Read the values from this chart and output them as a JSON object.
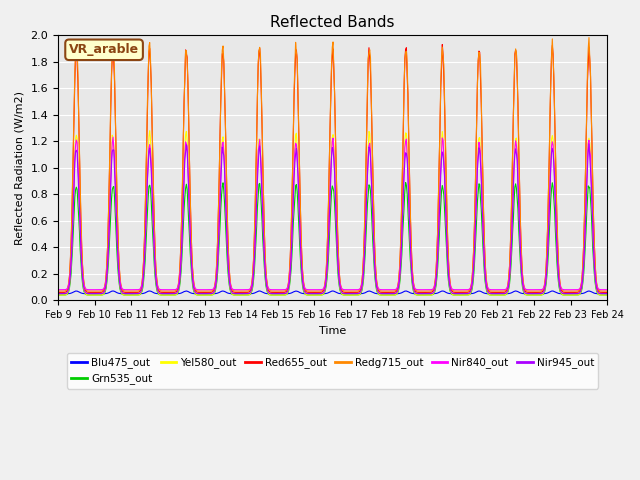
{
  "title": "Reflected Bands",
  "xlabel": "Time",
  "ylabel": "Reflected Radiation (W/m2)",
  "annotation_text": "VR_arable",
  "ylim": [
    0,
    2.0
  ],
  "series": {
    "Blu475_out": {
      "color": "#0000FF",
      "base": 0.05,
      "peak": 0.07
    },
    "Grn535_out": {
      "color": "#00CC00",
      "base": 0.04,
      "peak": 0.87
    },
    "Yel580_out": {
      "color": "#FFFF00",
      "base": 0.04,
      "peak": 1.25
    },
    "Red655_out": {
      "color": "#FF0000",
      "base": 0.06,
      "peak": 1.9
    },
    "Redg715_out": {
      "color": "#FF8800",
      "base": 0.07,
      "peak": 1.93
    },
    "Nir840_out": {
      "color": "#FF00FF",
      "base": 0.08,
      "peak": 1.2
    },
    "Nir945_out": {
      "color": "#AA00FF",
      "base": 0.05,
      "peak": 1.15
    }
  },
  "background_color": "#e8e8e8",
  "grid_color": "#ffffff",
  "tick_dates": [
    "Feb 9",
    "Feb 10",
    "Feb 11",
    "Feb 12",
    "Feb 13",
    "Feb 14",
    "Feb 15",
    "Feb 16",
    "Feb 17",
    "Feb 18",
    "Feb 19",
    "Feb 20",
    "Feb 21",
    "Feb 22",
    "Feb 23",
    "Feb 24"
  ],
  "num_days": 15,
  "samples_per_day": 48
}
